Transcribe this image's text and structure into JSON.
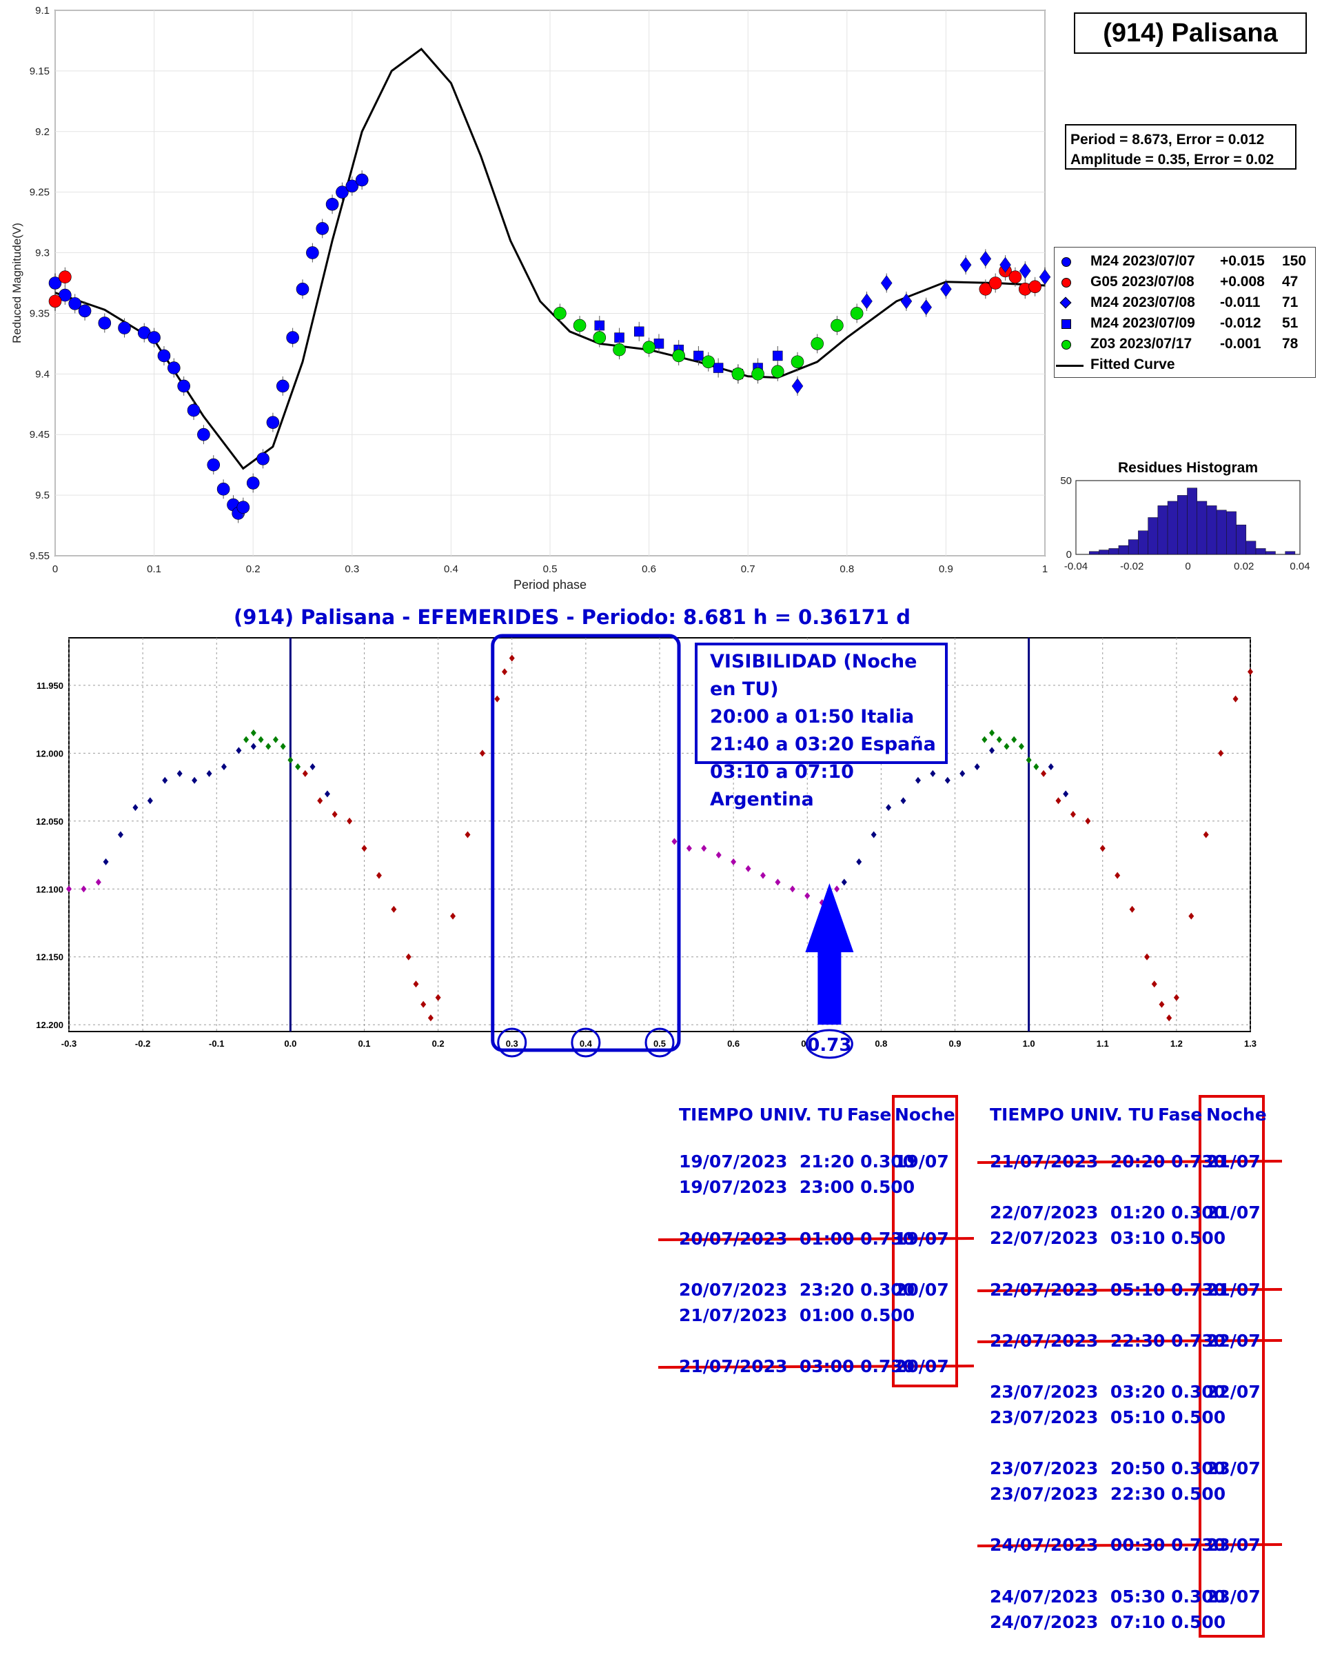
{
  "chart_data": [
    {
      "type": "scatter",
      "title": "(914) Palisana",
      "xlabel": "Period phase",
      "ylabel": "Reduced Magnitude(V)",
      "xlim": [
        0,
        1
      ],
      "ylim": [
        9.1,
        9.55
      ],
      "y_inverted": true,
      "grid": true,
      "x_ticks": [
        "0",
        "0.1",
        "0.2",
        "0.3",
        "0.4",
        "0.5",
        "0.6",
        "0.7",
        "0.8",
        "0.9",
        "1"
      ],
      "y_ticks": [
        "9.1",
        "9.15",
        "9.2",
        "9.25",
        "9.3",
        "9.35",
        "9.4",
        "9.45",
        "9.5",
        "9.55"
      ],
      "fit_info": [
        "Period =  8.673, Error = 0.012",
        "Amplitude = 0.35, Error = 0.02"
      ],
      "legend": [
        {
          "session": "M24 2023/07/07",
          "offset": "+0.015",
          "count": "150",
          "color": "#0000ff",
          "marker": "circle"
        },
        {
          "session": "G05 2023/07/08",
          "offset": "+0.008",
          "count": "47",
          "color": "#ff0000",
          "marker": "circle"
        },
        {
          "session": "M24 2023/07/08",
          "offset": "-0.011",
          "count": "71",
          "color": "#0000ff",
          "marker": "diamond"
        },
        {
          "session": "M24 2023/07/09",
          "offset": "-0.012",
          "count": "51",
          "color": "#0000ff",
          "marker": "square"
        },
        {
          "session": "Z03 2023/07/17",
          "offset": "-0.001",
          "count": "78",
          "color": "#00dd00",
          "marker": "circle"
        },
        {
          "session": "Fitted Curve",
          "color": "#000000",
          "marker": "line"
        }
      ],
      "fitted_curve": {
        "x": [
          0,
          0.05,
          0.1,
          0.15,
          0.19,
          0.22,
          0.25,
          0.28,
          0.31,
          0.34,
          0.37,
          0.4,
          0.43,
          0.46,
          0.49,
          0.52,
          0.55,
          0.6,
          0.65,
          0.7,
          0.73,
          0.77,
          0.8,
          0.85,
          0.9,
          0.95,
          1.0
        ],
        "y": [
          9.333,
          9.347,
          9.372,
          9.435,
          9.478,
          9.46,
          9.39,
          9.29,
          9.2,
          9.15,
          9.132,
          9.16,
          9.22,
          9.29,
          9.34,
          9.365,
          9.375,
          9.38,
          9.39,
          9.402,
          9.403,
          9.39,
          9.37,
          9.34,
          9.324,
          9.325,
          9.327
        ]
      },
      "series": [
        {
          "name": "M24 2023/07/07",
          "x": [
            0.0,
            0.01,
            0.02,
            0.03,
            0.05,
            0.07,
            0.09,
            0.1,
            0.11,
            0.12,
            0.13,
            0.14,
            0.15,
            0.16,
            0.17,
            0.18,
            0.185,
            0.19,
            0.2,
            0.21,
            0.22,
            0.23,
            0.24,
            0.25,
            0.26,
            0.27,
            0.28,
            0.29,
            0.3,
            0.31
          ],
          "values": [
            9.325,
            9.335,
            9.342,
            9.348,
            9.358,
            9.362,
            9.366,
            9.37,
            9.385,
            9.395,
            9.41,
            9.43,
            9.45,
            9.475,
            9.495,
            9.508,
            9.515,
            9.51,
            9.49,
            9.47,
            9.44,
            9.41,
            9.37,
            9.33,
            9.3,
            9.28,
            9.26,
            9.25,
            9.245,
            9.24
          ]
        },
        {
          "name": "G05 2023/07/08",
          "x": [
            0.0,
            0.01,
            0.94,
            0.95,
            0.96,
            0.97,
            0.98,
            0.99
          ],
          "values": [
            9.34,
            9.32,
            9.33,
            9.325,
            9.315,
            9.32,
            9.33,
            9.328
          ]
        },
        {
          "name": "M24 2023/07/08",
          "x": [
            0.82,
            0.84,
            0.86,
            0.88,
            0.9,
            0.92,
            0.94,
            0.96,
            0.98,
            1.0,
            0.75
          ],
          "values": [
            9.34,
            9.325,
            9.34,
            9.345,
            9.33,
            9.31,
            9.305,
            9.31,
            9.315,
            9.32,
            9.41
          ]
        },
        {
          "name": "M24 2023/07/09",
          "x": [
            0.55,
            0.57,
            0.59,
            0.61,
            0.63,
            0.65,
            0.67,
            0.69,
            0.71,
            0.73
          ],
          "values": [
            9.36,
            9.37,
            9.365,
            9.375,
            9.38,
            9.385,
            9.395,
            9.4,
            9.395,
            9.385
          ]
        },
        {
          "name": "Z03 2023/07/17",
          "x": [
            0.51,
            0.53,
            0.55,
            0.57,
            0.6,
            0.63,
            0.66,
            0.69,
            0.71,
            0.73,
            0.75,
            0.77,
            0.79,
            0.81
          ],
          "values": [
            9.35,
            9.36,
            9.37,
            9.38,
            9.378,
            9.385,
            9.39,
            9.4,
            9.4,
            9.398,
            9.39,
            9.375,
            9.36,
            9.35
          ]
        }
      ]
    },
    {
      "type": "bar",
      "title": "Residues Histogram",
      "xlim": [
        -0.04,
        0.04
      ],
      "ylim": [
        0,
        50
      ],
      "x_ticks": [
        "-0.04",
        "-0.02",
        "0",
        "0.02",
        "0.04"
      ],
      "y_ticks": [
        "0",
        "50"
      ],
      "color": "#2a1aa8",
      "bin_width": 0.0035,
      "x": [
        -0.0335,
        -0.03,
        -0.0265,
        -0.023,
        -0.0195,
        -0.016,
        -0.0125,
        -0.009,
        -0.0055,
        -0.002,
        0.0015,
        0.005,
        0.0085,
        0.012,
        0.0155,
        0.019,
        0.0225,
        0.026,
        0.0295,
        0.033,
        0.0365
      ],
      "values": [
        2,
        3,
        4,
        6,
        10,
        16,
        25,
        33,
        36,
        40,
        45,
        36,
        33,
        30,
        29,
        20,
        9,
        4,
        2,
        0,
        2
      ]
    },
    {
      "type": "scatter",
      "title": "(914) Palisana - EFEMERIDES - Periodo: 8.681 h = 0.36171 d",
      "xlim": [
        -0.3,
        1.3
      ],
      "ylim": [
        11.915,
        12.205
      ],
      "y_inverted": true,
      "grid": true,
      "x_ticks": [
        "-0.3",
        "-0.2",
        "-0.1",
        "0.0",
        "0.1",
        "0.2",
        "0.3",
        "0.4",
        "0.5",
        "0.6",
        "0.7",
        "0.8",
        "0.9",
        "1.0",
        "1.1",
        "1.2",
        "1.3"
      ],
      "y_ticks": [
        "11.950",
        "12.000",
        "12.050",
        "12.100",
        "12.150",
        "12.200"
      ],
      "vertical_lines": [
        0.0,
        1.0
      ],
      "visibility_box": [
        "VISIBILIDAD (Noche en TU)",
        "20:00 a 01:50 Italia",
        "21:40 a 03:20 España",
        "03:10 a 07:10 Argentina"
      ],
      "circled_ticks": [
        "0.3",
        "0.4",
        "0.5"
      ],
      "arrow_label": "0.73",
      "series": [
        {
          "color": "#000080",
          "x": [
            -0.25,
            -0.23,
            -0.21,
            -0.19,
            -0.17,
            -0.15,
            -0.13,
            -0.11,
            -0.09,
            -0.07,
            -0.05,
            0.03,
            0.05,
            0.75,
            0.77,
            0.79,
            0.81,
            0.83,
            0.85,
            0.87,
            0.89,
            0.91,
            0.93,
            0.95,
            1.03,
            1.05
          ],
          "values": [
            12.08,
            12.06,
            12.04,
            12.035,
            12.02,
            12.015,
            12.02,
            12.015,
            12.01,
            11.998,
            11.995,
            12.01,
            12.03,
            12.095,
            12.08,
            12.06,
            12.04,
            12.035,
            12.02,
            12.015,
            12.02,
            12.015,
            12.01,
            11.998,
            12.01,
            12.03
          ]
        },
        {
          "color": "#aa0000",
          "x": [
            0.02,
            0.04,
            0.06,
            0.08,
            0.1,
            0.12,
            0.14,
            0.16,
            0.17,
            0.18,
            0.19,
            0.2,
            0.22,
            0.24,
            0.26,
            0.28,
            0.29,
            0.3,
            1.02,
            1.04,
            1.06,
            1.08,
            1.1,
            1.12,
            1.14,
            1.16,
            1.17,
            1.18,
            1.19,
            1.2,
            1.22,
            1.24,
            1.26,
            1.28,
            1.3
          ],
          "values": [
            12.015,
            12.035,
            12.045,
            12.05,
            12.07,
            12.09,
            12.115,
            12.15,
            12.17,
            12.185,
            12.195,
            12.18,
            12.12,
            12.06,
            12.0,
            11.96,
            11.94,
            11.93,
            12.015,
            12.035,
            12.045,
            12.05,
            12.07,
            12.09,
            12.115,
            12.15,
            12.17,
            12.185,
            12.195,
            12.18,
            12.12,
            12.06,
            12.0,
            11.96,
            11.94
          ]
        },
        {
          "color": "#aa00aa",
          "x": [
            -0.3,
            -0.28,
            -0.26,
            0.52,
            0.54,
            0.56,
            0.58,
            0.6,
            0.62,
            0.64,
            0.66,
            0.68,
            0.7,
            0.72,
            0.74
          ],
          "values": [
            12.1,
            12.1,
            12.095,
            12.065,
            12.07,
            12.07,
            12.075,
            12.08,
            12.085,
            12.09,
            12.095,
            12.1,
            12.105,
            12.11,
            12.1
          ]
        },
        {
          "color": "#008000",
          "x": [
            -0.06,
            -0.05,
            -0.04,
            -0.03,
            -0.02,
            -0.01,
            0.0,
            0.01,
            0.94,
            0.95,
            0.96,
            0.97,
            0.98,
            0.99,
            1.0,
            1.01
          ],
          "values": [
            11.99,
            11.985,
            11.99,
            11.995,
            11.99,
            11.995,
            12.005,
            12.01,
            11.99,
            11.985,
            11.99,
            11.995,
            11.99,
            11.995,
            12.005,
            12.01
          ]
        }
      ]
    }
  ],
  "tables": [
    {
      "headers": {
        "time": "TIEMPO UNIV. TU",
        "phase": "Fase",
        "night": "Noche"
      },
      "rows": [
        {
          "text": "19/07/2023  21:20 0.300",
          "night": "19/07",
          "struck": false
        },
        {
          "text": "19/07/2023  23:00 0.500",
          "night": "",
          "struck": false
        },
        {
          "text": "20/07/2023  01:00 0.730",
          "night": "19/07",
          "struck": true
        },
        {
          "text": "20/07/2023  23:20 0.300",
          "night": "20/07",
          "struck": false
        },
        {
          "text": "21/07/2023  01:00 0.500",
          "night": "",
          "struck": false
        },
        {
          "text": "21/07/2023  03:00 0.730",
          "night": "20/07",
          "struck": true
        }
      ]
    },
    {
      "headers": {
        "time": "TIEMPO UNIV. TU",
        "phase": "Fase",
        "night": "Noche"
      },
      "rows": [
        {
          "text": "21/07/2023  20:20 0.730",
          "night": "21/07",
          "struck": true
        },
        {
          "text": "22/07/2023  01:20 0.300",
          "night": "21/07",
          "struck": false
        },
        {
          "text": "22/07/2023  03:10 0.500",
          "night": "",
          "struck": false
        },
        {
          "text": "22/07/2023  05:10 0.730",
          "night": "21/07",
          "struck": true
        },
        {
          "text": "22/07/2023  22:30 0.730",
          "night": "22/07",
          "struck": true
        },
        {
          "text": "23/07/2023  03:20 0.300",
          "night": "22/07",
          "struck": false
        },
        {
          "text": "23/07/2023  05:10 0.500",
          "night": "",
          "struck": false
        },
        {
          "text": "23/07/2023  20:50 0.300",
          "night": "23/07",
          "struck": false
        },
        {
          "text": "23/07/2023  22:30 0.500",
          "night": "",
          "struck": false
        },
        {
          "text": "24/07/2023  00:30 0.730",
          "night": "23/07",
          "struck": true
        },
        {
          "text": "24/07/2023  05:30 0.300",
          "night": "23/07",
          "struck": false
        },
        {
          "text": "24/07/2023  07:10 0.500",
          "night": "",
          "struck": false
        }
      ]
    }
  ]
}
